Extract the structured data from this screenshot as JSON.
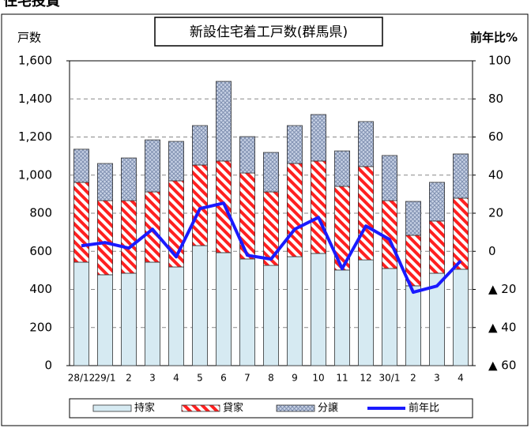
{
  "chart_data": {
    "type": "bar",
    "stacked": true,
    "heading": "住宅投資",
    "title": "新設住宅着工戸数(群馬県)",
    "y_label": "戸数",
    "y2_label": "前年比%",
    "categories": [
      "28/12",
      "29/1",
      "2",
      "3",
      "4",
      "5",
      "6",
      "7",
      "8",
      "9",
      "10",
      "11",
      "12",
      "30/1",
      "2",
      "3",
      "4"
    ],
    "series": [
      {
        "name": "持家",
        "color": "#d6eaf2",
        "values": [
          543,
          477,
          485,
          543,
          518,
          630,
          593,
          560,
          526,
          572,
          589,
          502,
          555,
          510,
          419,
          485,
          506
        ]
      },
      {
        "name": "貸家",
        "color": "#ff2020",
        "values": [
          419,
          389,
          381,
          369,
          452,
          423,
          481,
          451,
          386,
          489,
          485,
          439,
          490,
          356,
          265,
          274,
          373
        ]
      },
      {
        "name": "分譲",
        "color": "#7f8fb0",
        "values": [
          174,
          195,
          224,
          273,
          207,
          207,
          418,
          191,
          207,
          199,
          244,
          186,
          236,
          237,
          178,
          203,
          232
        ]
      },
      {
        "name": "前年比",
        "color": "#1a1aff",
        "axis": "y2",
        "values": [
          2.9,
          4.6,
          1.7,
          11.6,
          -2.9,
          22.4,
          25.3,
          -2.1,
          -4.1,
          11.6,
          17.8,
          -9.1,
          13.3,
          6.2,
          -21.5,
          -18.2,
          -5
        ]
      }
    ],
    "ylim": [
      0,
      1600
    ],
    "yticks": [
      0,
      {
        "value": 200,
        "label": "200"
      },
      {
        "value": 400,
        "label": "400"
      },
      {
        "value": 600,
        "label": "600"
      },
      {
        "value": 800,
        "label": "800"
      },
      {
        "value": 1000,
        "label": "1,000"
      },
      {
        "value": 1200,
        "label": "1,200"
      },
      {
        "value": 1400,
        "label": "1,400"
      },
      {
        "value": 1600,
        "label": "1,600"
      }
    ],
    "y2lim": [
      -60,
      100
    ],
    "y2ticks": [
      {
        "value": -60,
        "label": "▲ 60"
      },
      {
        "value": -40,
        "label": "▲ 40"
      },
      {
        "value": -20,
        "label": "▲ 20"
      },
      0,
      20,
      40,
      60,
      80,
      100
    ],
    "grid": true,
    "legend": "bottom"
  }
}
